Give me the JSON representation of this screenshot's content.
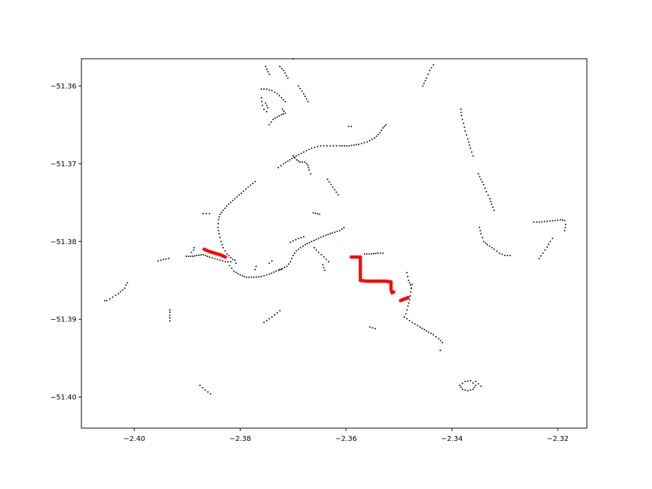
{
  "chart_data": {
    "type": "scatter",
    "title": "",
    "xlabel": "",
    "ylabel": "",
    "xlim": [
      -2.41,
      -2.3145
    ],
    "ylim": [
      -51.3565,
      -51.404
    ],
    "y_axis_inverted": true,
    "grid": false,
    "legend": "none",
    "x_ticks": [
      -2.4,
      -2.38,
      -2.36,
      -2.34,
      -2.32
    ],
    "x_tick_labels": [
      "−2.40",
      "−2.38",
      "−2.36",
      "−2.34",
      "−2.32"
    ],
    "y_ticks": [
      -51.4,
      -51.39,
      -51.38,
      -51.37,
      -51.36
    ],
    "y_tick_labels": [
      "−51.40",
      "−51.39",
      "−51.38",
      "−51.37",
      "−51.36"
    ],
    "series": [
      {
        "color": "#000000",
        "marker_size": "small",
        "paths": [
          [
            [
              -2.3876,
              -51.3985
            ],
            [
              -2.3866,
              -51.3991
            ],
            [
              -2.3856,
              -51.3996
            ]
          ],
          [
            [
              -2.4056,
              -51.3876
            ],
            [
              -2.4052,
              -51.3876
            ],
            [
              -2.403,
              -51.3867
            ],
            [
              -2.4018,
              -51.386
            ],
            [
              -2.4016,
              -51.3856
            ],
            [
              -2.4013,
              -51.3853
            ]
          ],
          [
            [
              -2.3933,
              -51.3902
            ],
            [
              -2.3933,
              -51.3898
            ],
            [
              -2.3933,
              -51.3895
            ],
            [
              -2.3933,
              -51.3891
            ],
            [
              -2.3933,
              -51.3888
            ]
          ],
          [
            [
              -2.3955,
              -51.3825
            ],
            [
              -2.3945,
              -51.3823
            ],
            [
              -2.3935,
              -51.3822
            ]
          ],
          [
            [
              -2.3902,
              -51.3819
            ],
            [
              -2.389,
              -51.3819
            ],
            [
              -2.3882,
              -51.3818
            ],
            [
              -2.387,
              -51.3817
            ],
            [
              -2.3858,
              -51.382
            ],
            [
              -2.3848,
              -51.3822
            ],
            [
              -2.3838,
              -51.3824
            ],
            [
              -2.3828,
              -51.3826
            ],
            [
              -2.3818,
              -51.3826
            ]
          ],
          [
            [
              -2.3892,
              -51.3814
            ],
            [
              -2.3888,
              -51.3811
            ],
            [
              -2.3887,
              -51.3808
            ]
          ],
          [
            [
              -2.387,
              -51.3764
            ],
            [
              -2.3858,
              -51.3764
            ]
          ],
          [
            [
              -2.3814,
              -51.3823
            ],
            [
              -2.3825,
              -51.3816
            ],
            [
              -2.3832,
              -51.3808
            ],
            [
              -2.3836,
              -51.38
            ],
            [
              -2.384,
              -51.379
            ],
            [
              -2.3842,
              -51.3782
            ],
            [
              -2.3841,
              -51.3772
            ],
            [
              -2.3838,
              -51.3765
            ],
            [
              -2.3832,
              -51.376
            ],
            [
              -2.3822,
              -51.3752
            ],
            [
              -2.381,
              -51.3745
            ],
            [
              -2.3798,
              -51.3738
            ],
            [
              -2.3785,
              -51.373
            ],
            [
              -2.3772,
              -51.3723
            ]
          ],
          [
            [
              -2.382,
              -51.3831
            ],
            [
              -2.3812,
              -51.3838
            ],
            [
              -2.38,
              -51.3843
            ],
            [
              -2.3788,
              -51.3846
            ],
            [
              -2.3774,
              -51.3846
            ],
            [
              -2.376,
              -51.3845
            ],
            [
              -2.3745,
              -51.3842
            ],
            [
              -2.3732,
              -51.3838
            ],
            [
              -2.3722,
              -51.3836
            ]
          ],
          [
            [
              -2.381,
              -51.3824
            ],
            [
              -2.3808,
              -51.3828
            ]
          ],
          [
            [
              -2.3772,
              -51.3836
            ],
            [
              -2.377,
              -51.3832
            ]
          ],
          [
            [
              -2.3745,
              -51.3828
            ],
            [
              -2.374,
              -51.3825
            ]
          ],
          [
            [
              -2.3725,
              -51.3836
            ],
            [
              -2.3712,
              -51.3832
            ],
            [
              -2.3705,
              -51.3826
            ],
            [
              -2.37,
              -51.3818
            ],
            [
              -2.3694,
              -51.3812
            ],
            [
              -2.3686,
              -51.3808
            ],
            [
              -2.3677,
              -51.3804
            ],
            [
              -2.3665,
              -51.38
            ],
            [
              -2.3652,
              -51.3796
            ],
            [
              -2.3638,
              -51.3792
            ],
            [
              -2.3626,
              -51.3789
            ],
            [
              -2.3612,
              -51.3786
            ],
            [
              -2.3604,
              -51.3782
            ]
          ],
          [
            [
              -2.3705,
              -51.3801
            ],
            [
              -2.369,
              -51.3796
            ],
            [
              -2.368,
              -51.3794
            ]
          ],
          [
            [
              -2.366,
              -51.3808
            ],
            [
              -2.3652,
              -51.3814
            ],
            [
              -2.3642,
              -51.382
            ],
            [
              -2.3633,
              -51.3826
            ]
          ],
          [
            [
              -2.364,
              -51.3837
            ],
            [
              -2.3644,
              -51.383
            ]
          ],
          [
            [
              -2.3728,
              -51.3705
            ],
            [
              -2.3718,
              -51.37
            ],
            [
              -2.3706,
              -51.3695
            ],
            [
              -2.3694,
              -51.369
            ],
            [
              -2.368,
              -51.3685
            ],
            [
              -2.3665,
              -51.368
            ],
            [
              -2.3648,
              -51.3677
            ],
            [
              -2.363,
              -51.3677
            ],
            [
              -2.3612,
              -51.3677
            ],
            [
              -2.3594,
              -51.3677
            ],
            [
              -2.3576,
              -51.3675
            ],
            [
              -2.356,
              -51.3672
            ],
            [
              -2.3546,
              -51.3667
            ],
            [
              -2.3536,
              -51.366
            ],
            [
              -2.353,
              -51.3654
            ],
            [
              -2.3525,
              -51.365
            ]
          ],
          [
            [
              -2.37,
              -51.369
            ],
            [
              -2.3693,
              -51.3695
            ],
            [
              -2.3687,
              -51.3698
            ],
            [
              -2.3678,
              -51.3698
            ],
            [
              -2.3672,
              -51.3702
            ],
            [
              -2.367,
              -51.3708
            ],
            [
              -2.3667,
              -51.3713
            ]
          ],
          [
            [
              -2.3565,
              -51.3816
            ],
            [
              -2.3552,
              -51.3816
            ],
            [
              -2.354,
              -51.3815
            ],
            [
              -2.353,
              -51.3815
            ]
          ],
          [
            [
              -2.3635,
              -51.372
            ],
            [
              -2.3625,
              -51.373
            ],
            [
              -2.3615,
              -51.374
            ]
          ],
          [
            [
              -2.3662,
              -51.3763
            ],
            [
              -2.365,
              -51.3765
            ]
          ],
          [
            [
              -2.3755,
              -51.3904
            ],
            [
              -2.374,
              -51.3897
            ],
            [
              -2.3725,
              -51.3889
            ]
          ],
          [
            [
              -2.3555,
              -51.391
            ],
            [
              -2.3545,
              -51.3912
            ]
          ],
          [
            [
              -2.3475,
              -51.3855
            ],
            [
              -2.3478,
              -51.3865
            ],
            [
              -2.348,
              -51.3875
            ],
            [
              -2.3483,
              -51.3883
            ],
            [
              -2.3485,
              -51.3888
            ],
            [
              -2.3487,
              -51.3893
            ],
            [
              -2.349,
              -51.3897
            ]
          ],
          [
            [
              -2.3485,
              -51.384
            ],
            [
              -2.3482,
              -51.385
            ],
            [
              -2.3478,
              -51.3856
            ],
            [
              -2.3477,
              -51.386
            ]
          ],
          [
            [
              -2.349,
              -51.3897
            ],
            [
              -2.3475,
              -51.3904
            ],
            [
              -2.346,
              -51.391
            ],
            [
              -2.3448,
              -51.3915
            ],
            [
              -2.3435,
              -51.392
            ],
            [
              -2.3425,
              -51.3925
            ],
            [
              -2.3418,
              -51.393
            ]
          ],
          [
            [
              -2.3422,
              -51.394
            ]
          ],
          [
            [
              -2.3385,
              -51.3985
            ],
            [
              -2.338,
              -51.399
            ],
            [
              -2.337,
              -51.3992
            ],
            [
              -2.336,
              -51.399
            ],
            [
              -2.3355,
              -51.3985
            ],
            [
              -2.3365,
              -51.3979
            ],
            [
              -2.3375,
              -51.398
            ],
            [
              -2.3385,
              -51.3985
            ]
          ],
          [
            [
              -2.3345,
              -51.3986
            ],
            [
              -2.3355,
              -51.398
            ]
          ],
          [
            [
              -2.3333,
              -51.3804
            ],
            [
              -2.332,
              -51.381
            ],
            [
              -2.331,
              -51.3815
            ],
            [
              -2.33,
              -51.3818
            ],
            [
              -2.329,
              -51.3818
            ]
          ],
          [
            [
              -2.3333,
              -51.3804
            ],
            [
              -2.334,
              -51.38
            ],
            [
              -2.3345,
              -51.379
            ],
            [
              -2.3348,
              -51.3782
            ]
          ],
          [
            [
              -2.332,
              -51.376
            ],
            [
              -2.3325,
              -51.3752
            ],
            [
              -2.3328,
              -51.3745
            ],
            [
              -2.3335,
              -51.3736
            ],
            [
              -2.334,
              -51.3727
            ],
            [
              -2.3345,
              -51.372
            ],
            [
              -2.335,
              -51.3713
            ]
          ],
          [
            [
              -2.336,
              -51.369
            ],
            [
              -2.3365,
              -51.368
            ],
            [
              -2.337,
              -51.3668
            ],
            [
              -2.3375,
              -51.3658
            ],
            [
              -2.3378,
              -51.3648
            ],
            [
              -2.3382,
              -51.3638
            ],
            [
              -2.3383,
              -51.363
            ]
          ],
          [
            [
              -2.3245,
              -51.3775
            ],
            [
              -2.3235,
              -51.3775
            ],
            [
              -2.322,
              -51.3774
            ],
            [
              -2.3205,
              -51.3773
            ],
            [
              -2.3195,
              -51.3772
            ],
            [
              -2.3187,
              -51.3773
            ],
            [
              -2.3185,
              -51.3778
            ],
            [
              -2.3187,
              -51.3786
            ]
          ],
          [
            [
              -2.3235,
              -51.3822
            ],
            [
              -2.3228,
              -51.3815
            ],
            [
              -2.322,
              -51.3807
            ],
            [
              -2.3214,
              -51.38
            ],
            [
              -2.321,
              -51.3796
            ]
          ],
          [
            [
              -2.376,
              -51.3615
            ],
            [
              -2.3758,
              -51.3625
            ],
            [
              -2.3755,
              -51.363
            ],
            [
              -2.375,
              -51.3633
            ],
            [
              -2.3748,
              -51.3628
            ],
            [
              -2.3752,
              -51.3622
            ]
          ],
          [
            [
              -2.3745,
              -51.365
            ],
            [
              -2.3738,
              -51.3643
            ],
            [
              -2.373,
              -51.364
            ],
            [
              -2.3722,
              -51.3637
            ],
            [
              -2.3715,
              -51.3635
            ],
            [
              -2.372,
              -51.363
            ]
          ],
          [
            [
              -2.3715,
              -51.362
            ],
            [
              -2.3722,
              -51.3615
            ],
            [
              -2.373,
              -51.361
            ],
            [
              -2.374,
              -51.3606
            ],
            [
              -2.375,
              -51.3604
            ],
            [
              -2.376,
              -51.3604
            ]
          ],
          [
            [
              -2.371,
              -51.359
            ],
            [
              -2.3718,
              -51.358
            ],
            [
              -2.3725,
              -51.3575
            ]
          ],
          [
            [
              -2.3745,
              -51.3585
            ],
            [
              -2.3752,
              -51.3575
            ]
          ],
          [
            [
              -2.369,
              -51.36
            ],
            [
              -2.368,
              -51.361
            ],
            [
              -2.3672,
              -51.362
            ]
          ],
          [
            [
              -2.37,
              -51.3565
            ]
          ],
          [
            [
              -2.3595,
              -51.3652
            ],
            [
              -2.359,
              -51.3652
            ]
          ],
          [
            [
              -2.3455,
              -51.36
            ],
            [
              -2.3448,
              -51.359
            ],
            [
              -2.3442,
              -51.358
            ],
            [
              -2.3435,
              -51.3573
            ]
          ]
        ]
      },
      {
        "color": "#ff0000",
        "marker_size": "large",
        "paths": [
          [
            [
              -2.3868,
              -51.381
            ],
            [
              -2.3858,
              -51.3813
            ],
            [
              -2.3848,
              -51.3815
            ],
            [
              -2.3838,
              -51.3817
            ],
            [
              -2.3828,
              -51.382
            ]
          ],
          [
            [
              -2.359,
              -51.382
            ],
            [
              -2.3582,
              -51.382
            ],
            [
              -2.3573,
              -51.382
            ],
            [
              -2.3573,
              -51.3827
            ],
            [
              -2.3573,
              -51.3836
            ],
            [
              -2.3573,
              -51.3844
            ],
            [
              -2.3573,
              -51.385
            ],
            [
              -2.3562,
              -51.3851
            ],
            [
              -2.355,
              -51.3851
            ],
            [
              -2.3538,
              -51.3851
            ],
            [
              -2.3525,
              -51.3851
            ],
            [
              -2.3515,
              -51.3852
            ],
            [
              -2.3515,
              -51.3862
            ],
            [
              -2.3513,
              -51.3866
            ],
            [
              -2.351,
              -51.3865
            ]
          ],
          [
            [
              -2.3497,
              -51.3876
            ],
            [
              -2.349,
              -51.3874
            ],
            [
              -2.3485,
              -51.3873
            ],
            [
              -2.3483,
              -51.3872
            ]
          ]
        ]
      }
    ]
  }
}
